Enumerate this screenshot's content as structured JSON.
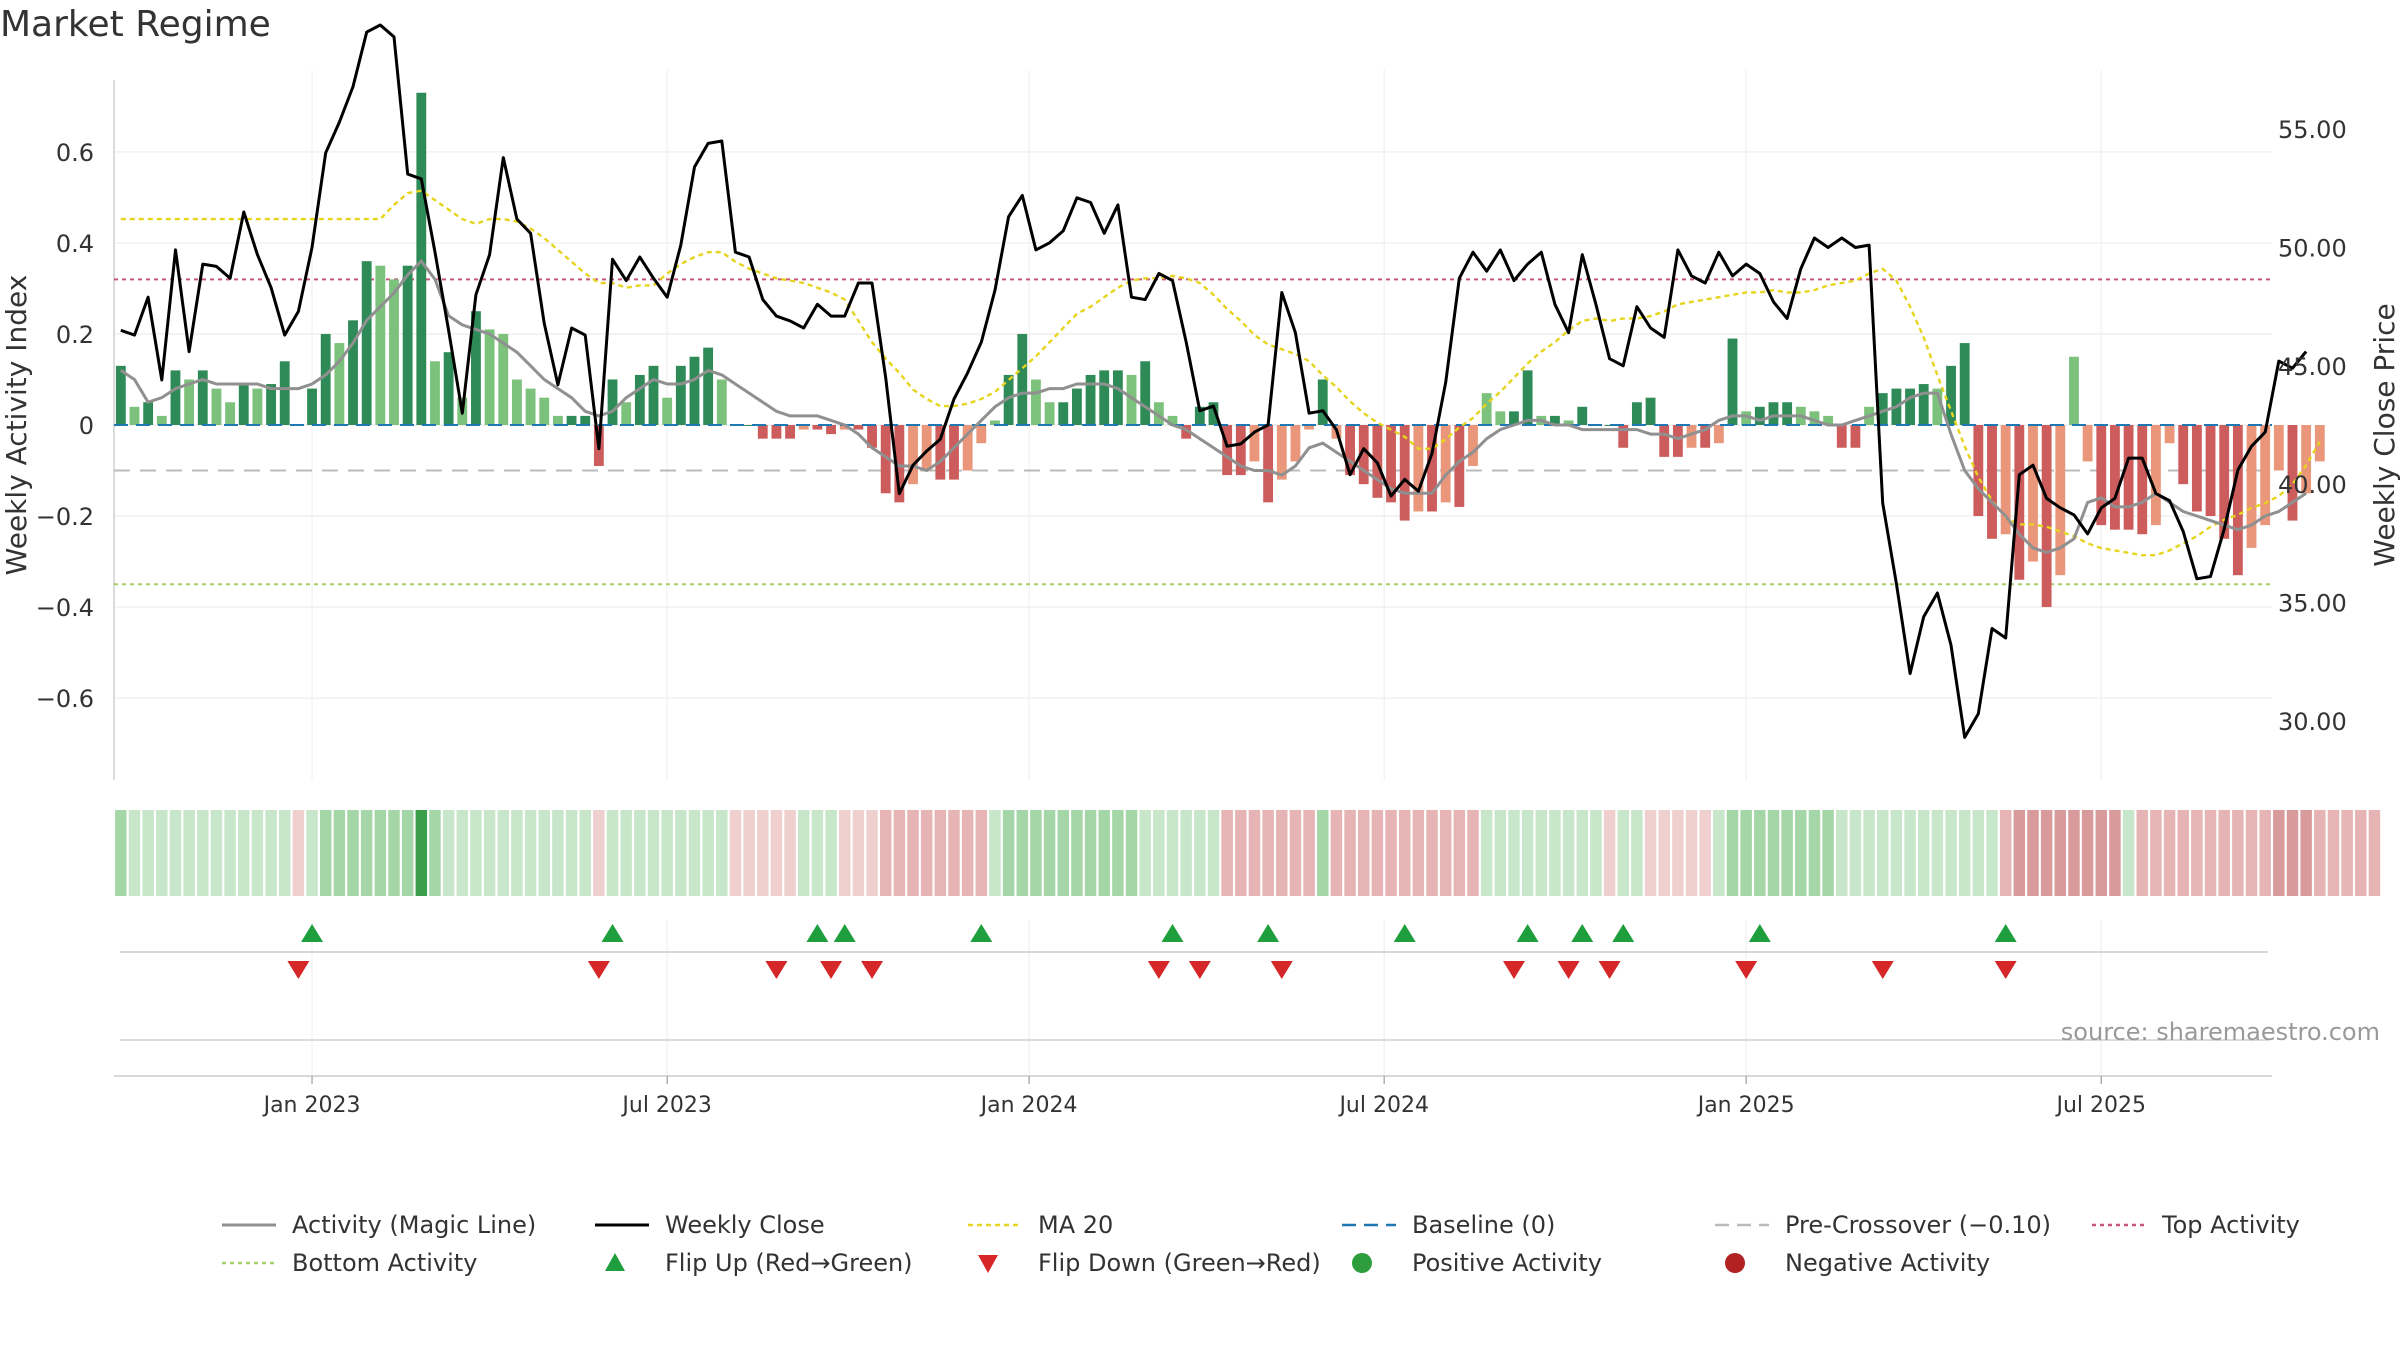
{
  "chart_data": {
    "type": "bar",
    "title": "Market Regime",
    "ylabel_left": "Weekly Activity Index",
    "ylabel_right": "Weekly Close Price",
    "source": "source: sharemaestro.com",
    "ylim_left": [
      -0.78,
      0.78
    ],
    "ylim_right": [
      27.5,
      57.5
    ],
    "yticks_left": [
      -0.6,
      -0.4,
      -0.2,
      0,
      0.2,
      0.4,
      0.6
    ],
    "yticks_left_labels": [
      "−0.6",
      "−0.4",
      "−0.2",
      "0",
      "0.2",
      "0.4",
      "0.6"
    ],
    "yticks_right": [
      30,
      35,
      40,
      45,
      50,
      55
    ],
    "yticks_right_labels": [
      "30.00",
      "35.00",
      "40.00",
      "45.00",
      "50.00",
      "55.00"
    ],
    "xlim": [
      0,
      158
    ],
    "xticks": [
      {
        "label": "Jan 2023",
        "x": 14.5
      },
      {
        "label": "Jul 2023",
        "x": 40.5
      },
      {
        "label": "Jan 2024",
        "x": 67
      },
      {
        "label": "Jul 2024",
        "x": 93
      },
      {
        "label": "Jan 2025",
        "x": 119.5
      },
      {
        "label": "Jul 2025",
        "x": 145.5
      }
    ],
    "reference_lines": {
      "top_activity": 0.32,
      "bottom_activity": -0.35,
      "pre_crossover": -0.1,
      "baseline": 0
    },
    "activity": [
      0.13,
      0.04,
      0.05,
      0.02,
      0.12,
      0.1,
      0.12,
      0.08,
      0.05,
      0.09,
      0.08,
      0.09,
      0.14,
      0.0,
      0.08,
      0.2,
      0.18,
      0.23,
      0.36,
      0.35,
      0.32,
      0.35,
      0.73,
      0.14,
      0.16,
      0.06,
      0.25,
      0.21,
      0.2,
      0.1,
      0.08,
      0.06,
      0.02,
      0.02,
      0.02,
      -0.09,
      0.1,
      0.05,
      0.11,
      0.13,
      0.06,
      0.13,
      0.15,
      0.17,
      0.1,
      0.0,
      0.0,
      -0.03,
      -0.03,
      -0.03,
      -0.01,
      -0.01,
      -0.02,
      -0.01,
      -0.01,
      -0.05,
      -0.15,
      -0.17,
      -0.13,
      -0.1,
      -0.12,
      -0.12,
      -0.1,
      -0.04,
      0.01,
      0.11,
      0.2,
      0.1,
      0.05,
      0.05,
      0.08,
      0.11,
      0.12,
      0.12,
      0.11,
      0.14,
      0.05,
      0.02,
      -0.03,
      0.04,
      0.05,
      -0.11,
      -0.11,
      -0.08,
      -0.17,
      -0.12,
      -0.08,
      -0.01,
      0.1,
      -0.03,
      -0.11,
      -0.13,
      -0.16,
      -0.17,
      -0.21,
      -0.19,
      -0.19,
      -0.17,
      -0.18,
      -0.09,
      0.07,
      0.03,
      0.03,
      0.12,
      0.02,
      0.02,
      0.01,
      0.04,
      0.0,
      0.0,
      -0.05,
      0.05,
      0.06,
      -0.07,
      -0.07,
      -0.05,
      -0.05,
      -0.04,
      0.19,
      0.03,
      0.04,
      0.05,
      0.05,
      0.04,
      0.03,
      0.02,
      -0.05,
      -0.05,
      0.04,
      0.07,
      0.08,
      0.08,
      0.09,
      0.08,
      0.13,
      0.18,
      -0.2,
      -0.25,
      -0.24,
      -0.34,
      -0.3,
      -0.4,
      -0.33,
      0.15,
      -0.08,
      -0.22,
      -0.23,
      -0.23,
      -0.24,
      -0.22,
      -0.04,
      -0.13,
      -0.19,
      -0.2,
      -0.25,
      -0.33,
      -0.27,
      -0.22,
      -0.1,
      -0.21,
      -0.15,
      -0.08
    ],
    "magic_line": [
      0.12,
      0.1,
      0.05,
      0.06,
      0.08,
      0.09,
      0.1,
      0.09,
      0.09,
      0.09,
      0.09,
      0.08,
      0.08,
      0.08,
      0.09,
      0.11,
      0.14,
      0.18,
      0.23,
      0.26,
      0.29,
      0.33,
      0.36,
      0.32,
      0.24,
      0.22,
      0.21,
      0.2,
      0.18,
      0.16,
      0.13,
      0.1,
      0.08,
      0.06,
      0.03,
      0.02,
      0.03,
      0.06,
      0.08,
      0.1,
      0.09,
      0.09,
      0.1,
      0.12,
      0.11,
      0.09,
      0.07,
      0.05,
      0.03,
      0.02,
      0.02,
      0.02,
      0.01,
      0.0,
      -0.02,
      -0.05,
      -0.07,
      -0.09,
      -0.09,
      -0.1,
      -0.08,
      -0.05,
      -0.02,
      0.01,
      0.04,
      0.06,
      0.07,
      0.07,
      0.08,
      0.08,
      0.09,
      0.09,
      0.09,
      0.08,
      0.06,
      0.04,
      0.02,
      0.0,
      -0.01,
      -0.03,
      -0.05,
      -0.07,
      -0.09,
      -0.1,
      -0.1,
      -0.11,
      -0.09,
      -0.05,
      -0.04,
      -0.06,
      -0.08,
      -0.1,
      -0.12,
      -0.14,
      -0.15,
      -0.15,
      -0.15,
      -0.11,
      -0.08,
      -0.06,
      -0.03,
      -0.01,
      0.0,
      0.01,
      0.01,
      0.0,
      0.0,
      -0.01,
      -0.01,
      -0.01,
      -0.01,
      -0.01,
      -0.02,
      -0.02,
      -0.03,
      -0.02,
      -0.01,
      0.01,
      0.02,
      0.02,
      0.01,
      0.02,
      0.02,
      0.02,
      0.01,
      0.0,
      0.0,
      0.01,
      0.02,
      0.03,
      0.04,
      0.06,
      0.07,
      0.07,
      -0.02,
      -0.1,
      -0.14,
      -0.17,
      -0.2,
      -0.24,
      -0.27,
      -0.28,
      -0.27,
      -0.25,
      -0.17,
      -0.16,
      -0.18,
      -0.18,
      -0.17,
      -0.15,
      -0.17,
      -0.19,
      -0.2,
      -0.21,
      -0.22,
      -0.23,
      -0.22,
      -0.2,
      -0.19,
      -0.17,
      -0.15
    ],
    "weekly_close": [
      46.5,
      46.3,
      47.9,
      44.4,
      49.9,
      45.6,
      49.3,
      49.2,
      48.7,
      51.5,
      49.7,
      48.3,
      46.3,
      47.3,
      50.0,
      54.0,
      55.3,
      56.8,
      59.1,
      59.4,
      58.9,
      53.1,
      52.9,
      49.8,
      46.5,
      43.0,
      48.0,
      49.7,
      53.8,
      51.2,
      50.6,
      46.8,
      44.2,
      46.6,
      46.3,
      41.5,
      49.5,
      48.6,
      49.6,
      48.7,
      47.9,
      50.1,
      53.4,
      54.4,
      54.5,
      49.8,
      49.6,
      47.8,
      47.1,
      46.9,
      46.6,
      47.6,
      47.1,
      47.1,
      48.5,
      48.5,
      44.5,
      39.6,
      40.8,
      41.4,
      41.9,
      43.6,
      44.7,
      46.0,
      48.2,
      51.3,
      52.2,
      49.9,
      50.2,
      50.7,
      52.1,
      51.9,
      50.6,
      51.8,
      47.9,
      47.8,
      48.9,
      48.6,
      46.0,
      43.1,
      43.3,
      41.6,
      41.7,
      42.2,
      42.5,
      48.1,
      46.4,
      43.0,
      43.1,
      42.3,
      40.4,
      41.5,
      40.9,
      39.5,
      40.2,
      39.7,
      41.3,
      44.3,
      48.7,
      49.8,
      49.0,
      49.9,
      48.6,
      49.3,
      49.8,
      47.6,
      46.4,
      49.7,
      47.6,
      45.3,
      45.0,
      47.5,
      46.6,
      46.2,
      49.9,
      48.8,
      48.5,
      49.8,
      48.8,
      49.3,
      48.9,
      47.7,
      47.0,
      49.1,
      50.4,
      50.0,
      50.4,
      50.0,
      50.1,
      39.2,
      35.8,
      32.0,
      34.4,
      35.4,
      33.2,
      29.3,
      30.3,
      33.9,
      33.5,
      40.4,
      40.8,
      39.4,
      39.0,
      38.7,
      37.9,
      39.0,
      39.4,
      41.1,
      41.1,
      39.6,
      39.3,
      38.0,
      36.0,
      36.1,
      38.1,
      40.6,
      41.6,
      42.2,
      45.2,
      44.9,
      45.6
    ],
    "ma20": [
      51.2,
      51.2,
      51.2,
      51.2,
      51.2,
      51.2,
      51.2,
      51.2,
      51.2,
      51.2,
      51.2,
      51.2,
      51.2,
      51.2,
      51.2,
      51.2,
      51.2,
      51.2,
      51.2,
      51.2,
      51.8,
      52.3,
      52.4,
      52.0,
      51.6,
      51.2,
      51.0,
      51.2,
      51.2,
      51.1,
      50.8,
      50.4,
      49.9,
      49.4,
      48.9,
      48.5,
      48.5,
      48.3,
      48.4,
      48.4,
      48.9,
      49.3,
      49.6,
      49.8,
      49.8,
      49.4,
      49.1,
      48.9,
      48.7,
      48.6,
      48.5,
      48.3,
      48.1,
      47.8,
      46.9,
      46.0,
      45.3,
      44.7,
      44.0,
      43.6,
      43.3,
      43.3,
      43.4,
      43.6,
      43.9,
      44.4,
      44.9,
      45.4,
      46.0,
      46.6,
      47.2,
      47.5,
      47.9,
      48.3,
      48.6,
      48.7,
      48.7,
      48.8,
      48.7,
      48.5,
      48.0,
      47.4,
      46.9,
      46.3,
      45.9,
      45.7,
      45.5,
      45.2,
      44.6,
      44.1,
      43.5,
      43.0,
      42.6,
      42.3,
      42.0,
      41.5,
      41.5,
      41.9,
      42.4,
      42.8,
      43.4,
      43.9,
      44.5,
      45.1,
      45.6,
      46.0,
      46.5,
      46.9,
      47.0,
      46.9,
      47.0,
      47.0,
      47.1,
      47.3,
      47.6,
      47.7,
      47.8,
      47.9,
      48.0,
      48.1,
      48.1,
      48.2,
      48.1,
      48.1,
      48.2,
      48.4,
      48.5,
      48.6,
      48.9,
      49.1,
      48.6,
      47.5,
      46.2,
      44.6,
      43.1,
      41.6,
      40.3,
      39.3,
      38.6,
      38.3,
      38.3,
      38.2,
      38.0,
      37.8,
      37.5,
      37.3,
      37.2,
      37.1,
      37.0,
      37.0,
      37.2,
      37.5,
      37.8,
      38.2,
      38.5,
      38.7,
      39.0,
      39.2,
      39.5,
      40.0,
      40.8,
      41.8
    ],
    "regime_strip": [
      2,
      1,
      1,
      1,
      1,
      1,
      1,
      1,
      1,
      1,
      1,
      1,
      1,
      -1,
      1,
      2,
      2,
      2,
      2,
      2,
      2,
      2,
      3,
      2,
      1,
      1,
      1,
      1,
      1,
      1,
      1,
      1,
      1,
      1,
      1,
      -1,
      1,
      1,
      1,
      1,
      1,
      1,
      1,
      1,
      1,
      -1,
      -1,
      -1,
      -1,
      -1,
      1,
      1,
      1,
      -1,
      -1,
      -1,
      -2,
      -2,
      -2,
      -2,
      -2,
      -2,
      -2,
      -2,
      1,
      2,
      2,
      2,
      2,
      2,
      2,
      2,
      2,
      2,
      2,
      1,
      1,
      1,
      1,
      1,
      1,
      -2,
      -2,
      -2,
      -2,
      -2,
      -2,
      -2,
      2,
      -2,
      -2,
      -2,
      -2,
      -2,
      -2,
      -2,
      -2,
      -2,
      -2,
      -2,
      1,
      1,
      1,
      1,
      1,
      1,
      1,
      1,
      1,
      -1,
      1,
      1,
      -1,
      -1,
      -1,
      -1,
      -1,
      1,
      2,
      2,
      2,
      2,
      2,
      2,
      2,
      2,
      1,
      1,
      1,
      1,
      1,
      1,
      1,
      1,
      1,
      1,
      1,
      1,
      -2,
      -3,
      -3,
      -3,
      -3,
      -3,
      -3,
      -3,
      -3,
      1,
      -2,
      -2,
      -2,
      -2,
      -2,
      -2,
      -2,
      -2,
      -2,
      -2,
      -3,
      -3,
      -3,
      -2,
      -2,
      -2,
      -2,
      -2
    ],
    "flip_up": [
      14,
      36,
      51,
      53,
      63,
      77,
      84,
      94,
      103,
      107,
      110,
      120,
      138
    ],
    "flip_down": [
      13,
      35,
      48,
      52,
      55,
      76,
      79,
      85,
      102,
      106,
      109,
      119,
      129,
      138
    ],
    "colors": {
      "pos_dark": "#2e8b57",
      "pos_light": "#7cc17c",
      "neg_dark": "#cd5c5c",
      "neg_light": "#e9967a",
      "magic": "#909090",
      "close": "#000000",
      "ma20": "#e6d41e",
      "baseline": "#1f77b4",
      "pre_crossover": "#bbbbbb",
      "top": "#c9577a",
      "bottom": "#a8d06a",
      "flip_up": "#1e9e3c",
      "flip_down": "#d62728",
      "positive_dot": "#2e9e3c",
      "negative_dot": "#b22222",
      "strip_pos1": "#c8e6c9",
      "strip_pos2": "#a5d6a7",
      "strip_pos3": "#3a9e4a",
      "strip_neg1": "#f0cfcf",
      "strip_neg2": "#e6b4b4",
      "strip_neg3": "#d89a9a"
    },
    "legend": [
      {
        "key": "magic",
        "label": "Activity (Magic Line)",
        "style": "solid-gray"
      },
      {
        "key": "close",
        "label": "Weekly Close",
        "style": "solid-black"
      },
      {
        "key": "ma20",
        "label": "MA 20",
        "style": "dotted-yellow"
      },
      {
        "key": "baseline",
        "label": "Baseline (0)",
        "style": "dashed-blue"
      },
      {
        "key": "pre",
        "label": "Pre-Crossover (−0.10)",
        "style": "dashed-gray"
      },
      {
        "key": "top",
        "label": "Top Activity",
        "style": "dotted-pink"
      },
      {
        "key": "bottom",
        "label": "Bottom Activity",
        "style": "dotted-green"
      },
      {
        "key": "flipup",
        "label": "Flip Up (Red→Green)",
        "style": "tri-up"
      },
      {
        "key": "flipdown",
        "label": "Flip Down (Green→Red)",
        "style": "tri-down"
      },
      {
        "key": "posdot",
        "label": "Positive Activity",
        "style": "dot-green"
      },
      {
        "key": "negdot",
        "label": "Negative Activity",
        "style": "dot-red"
      }
    ]
  }
}
